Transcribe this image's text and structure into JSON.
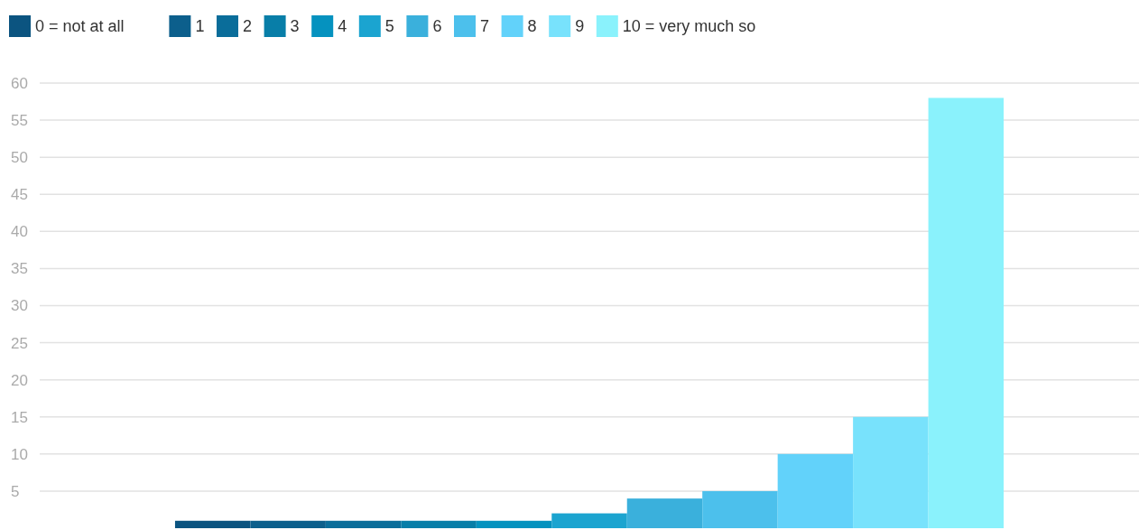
{
  "chart_data": {
    "type": "bar",
    "categories": [
      null
    ],
    "series": [
      {
        "name": "0 = not at all",
        "color": "#0b5480",
        "values": [
          1
        ]
      },
      {
        "name": "1",
        "color": "#0c5f8c",
        "values": [
          1
        ]
      },
      {
        "name": "2",
        "color": "#0a6d9a",
        "values": [
          1
        ]
      },
      {
        "name": "3",
        "color": "#087ea8",
        "values": [
          1
        ]
      },
      {
        "name": "4",
        "color": "#0592bf",
        "values": [
          1
        ]
      },
      {
        "name": "5",
        "color": "#1ba4d0",
        "values": [
          2
        ]
      },
      {
        "name": "6",
        "color": "#3ab0dc",
        "values": [
          4
        ]
      },
      {
        "name": "7",
        "color": "#4cc0ec",
        "values": [
          5
        ]
      },
      {
        "name": "8",
        "color": "#62d2fa",
        "values": [
          10
        ]
      },
      {
        "name": "9",
        "color": "#78e2fc",
        "values": [
          15
        ]
      },
      {
        "name": "10 = very much so",
        "color": "#8af2fc",
        "values": [
          58
        ]
      }
    ],
    "ylim": [
      0,
      60
    ],
    "yticks": [
      5,
      10,
      15,
      20,
      25,
      30,
      35,
      40,
      45,
      50,
      55,
      60
    ],
    "grid": "y",
    "legend": "top left"
  }
}
